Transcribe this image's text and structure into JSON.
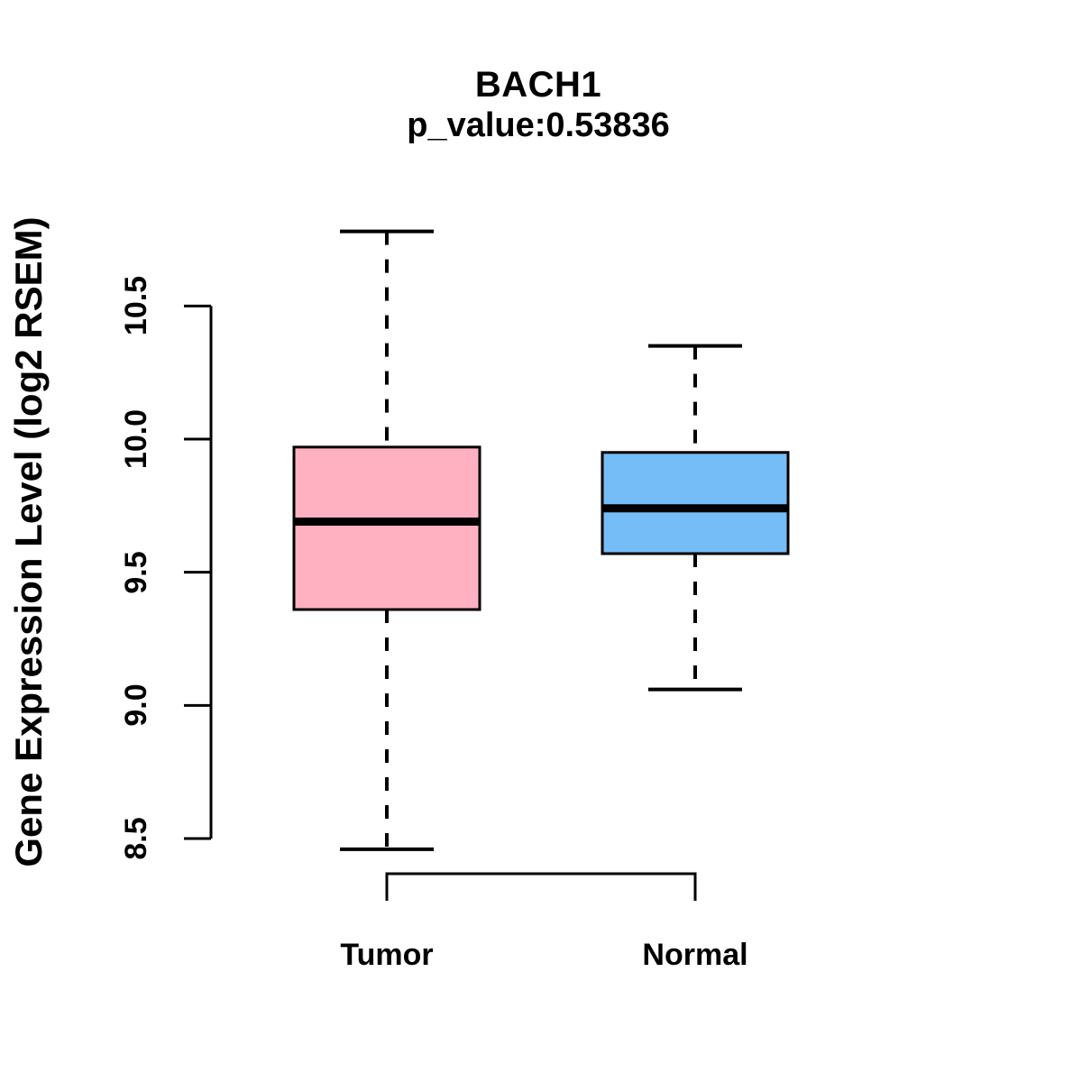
{
  "figure": {
    "background_color": "#FFFFFF",
    "text_color": "#000000",
    "axis_color": "#000000"
  },
  "chart_data": {
    "type": "box",
    "title": "BACH1",
    "subtitle": "p_value:0.53836",
    "p_value": 0.53836,
    "gene": "BACH1",
    "ylabel": "Gene Expression Level (log2 RSEM)",
    "xlabel": "",
    "categories": [
      "Tumor",
      "Normal"
    ],
    "ytick_labels": [
      "8.5",
      "9.0",
      "9.5",
      "10.0",
      "10.5"
    ],
    "yticks": [
      8.5,
      9.0,
      9.5,
      10.0,
      10.5
    ],
    "ylim": [
      8.35,
      10.9
    ],
    "grid": false,
    "legend_position": "none",
    "series": [
      {
        "name": "Tumor",
        "fill_color": "#FFB1C1",
        "border_color": "#000000",
        "whisker_low": 8.46,
        "q1": 9.36,
        "median": 9.69,
        "q3": 9.97,
        "whisker_high": 10.78
      },
      {
        "name": "Normal",
        "fill_color": "#74BDF6",
        "border_color": "#000000",
        "whisker_low": 9.06,
        "q1": 9.57,
        "median": 9.74,
        "q3": 9.95,
        "whisker_high": 10.35
      }
    ]
  }
}
